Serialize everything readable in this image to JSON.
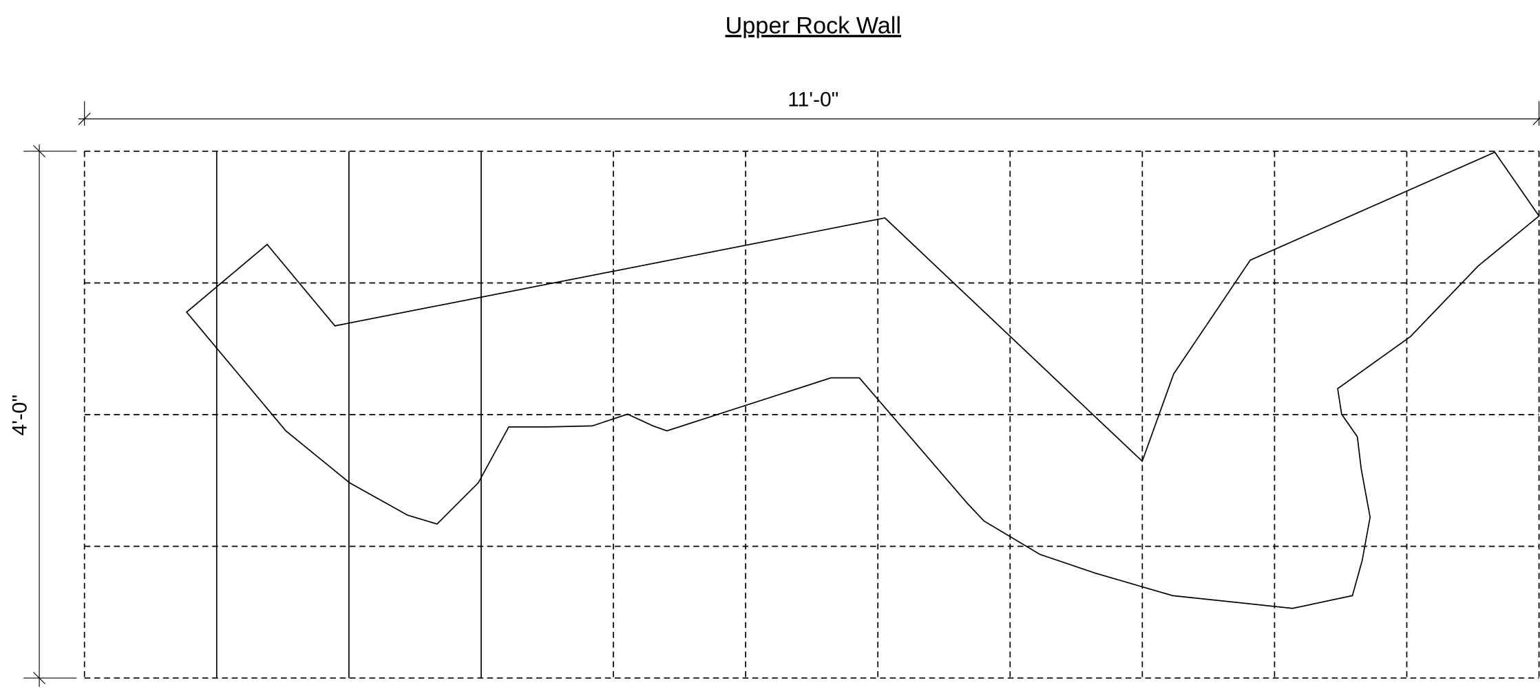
{
  "title": "Upper Rock Wall",
  "dimensions": {
    "width": "11'-0\"",
    "height": "4'-0\""
  }
}
